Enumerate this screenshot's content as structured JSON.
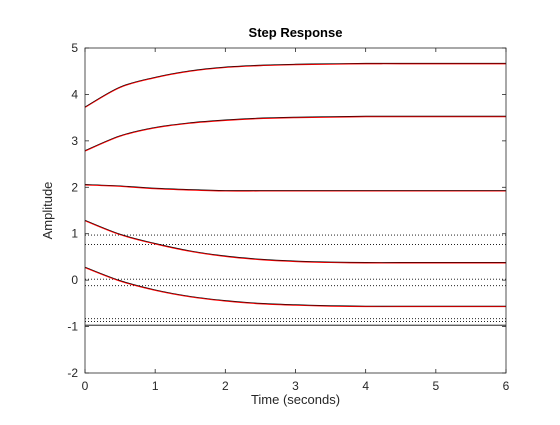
{
  "chart_data": {
    "type": "line",
    "title": "Step Response",
    "xlabel": "Time (seconds)",
    "ylabel": "Amplitude",
    "xlim": [
      0,
      6
    ],
    "ylim": [
      -2,
      5
    ],
    "xticks": [
      0,
      1,
      2,
      3,
      4,
      5,
      6
    ],
    "yticks": [
      -2,
      -1,
      0,
      1,
      2,
      3,
      4,
      5
    ],
    "grid": false,
    "legend": "none",
    "colors": {
      "series": "#000000",
      "overlay": "#ff0000",
      "reference": "#000000",
      "axes": "#262626"
    },
    "series": [
      {
        "x": [
          0,
          0.5,
          1,
          1.5,
          2,
          2.5,
          3,
          3.5,
          4,
          4.5,
          5,
          5.5,
          6
        ],
        "values": [
          3.72,
          4.15,
          4.36,
          4.5,
          4.58,
          4.62,
          4.64,
          4.65,
          4.66,
          4.66,
          4.66,
          4.66,
          4.66
        ]
      },
      {
        "x": [
          0,
          0.5,
          1,
          1.5,
          2,
          2.5,
          3,
          3.5,
          4,
          4.5,
          5,
          5.5,
          6
        ],
        "values": [
          2.78,
          3.1,
          3.28,
          3.38,
          3.44,
          3.48,
          3.5,
          3.51,
          3.52,
          3.52,
          3.52,
          3.52,
          3.52
        ]
      },
      {
        "x": [
          0,
          0.5,
          1,
          1.5,
          2,
          2.5,
          3,
          3.5,
          4,
          4.5,
          5,
          5.5,
          6
        ],
        "values": [
          2.05,
          2.02,
          1.97,
          1.94,
          1.92,
          1.92,
          1.92,
          1.92,
          1.92,
          1.92,
          1.92,
          1.92,
          1.92
        ]
      },
      {
        "x": [
          0,
          0.5,
          1,
          1.5,
          2,
          2.5,
          3,
          3.5,
          4,
          4.5,
          5,
          5.5,
          6
        ],
        "values": [
          1.28,
          0.98,
          0.78,
          0.62,
          0.51,
          0.44,
          0.4,
          0.38,
          0.37,
          0.37,
          0.37,
          0.37,
          0.37
        ]
      },
      {
        "x": [
          0,
          0.5,
          1,
          1.5,
          2,
          2.5,
          3,
          3.5,
          4,
          4.5,
          5,
          5.5,
          6
        ],
        "values": [
          0.27,
          -0.02,
          -0.22,
          -0.36,
          -0.45,
          -0.51,
          -0.54,
          -0.56,
          -0.57,
          -0.57,
          -0.57,
          -0.57,
          -0.57
        ]
      }
    ],
    "reference_lines": [
      {
        "y": 0.97,
        "style": "dotted"
      },
      {
        "y": 0.77,
        "style": "dotted"
      },
      {
        "y": 0.02,
        "style": "dotted"
      },
      {
        "y": -0.12,
        "style": "dotted"
      },
      {
        "y": -0.83,
        "style": "dotted"
      },
      {
        "y": -0.89,
        "style": "dotted"
      },
      {
        "y": -0.97,
        "style": "solid"
      }
    ]
  }
}
